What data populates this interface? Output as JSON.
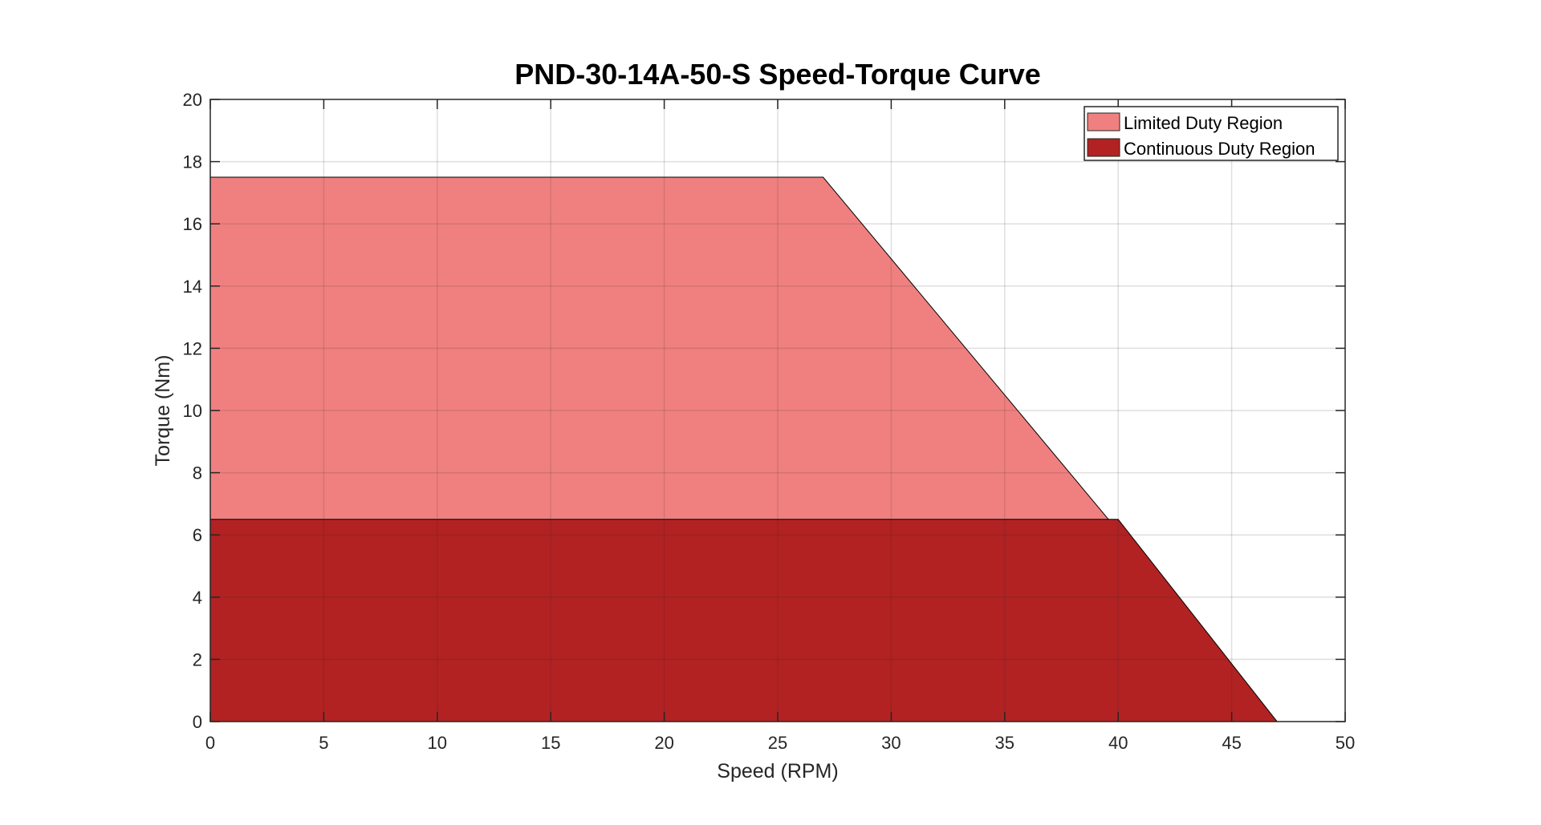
{
  "chart_data": {
    "type": "area",
    "title": "PND-30-14A-50-S Speed-Torque Curve",
    "xlabel": "Speed (RPM)",
    "ylabel": "Torque (Nm)",
    "xlim": [
      0,
      50
    ],
    "ylim": [
      0,
      20
    ],
    "xticks": [
      0,
      5,
      10,
      15,
      20,
      25,
      30,
      35,
      40,
      45,
      50
    ],
    "yticks": [
      0,
      2,
      4,
      6,
      8,
      10,
      12,
      14,
      16,
      18,
      20
    ],
    "grid": true,
    "legend_position": "top-right",
    "series": [
      {
        "name": "Limited Duty Region",
        "color": "#F08080",
        "points": [
          [
            0,
            0
          ],
          [
            0,
            17.5
          ],
          [
            27,
            17.5
          ],
          [
            47,
            0
          ]
        ]
      },
      {
        "name": "Continuous Duty Region",
        "color": "#B22222",
        "points": [
          [
            0,
            0
          ],
          [
            0,
            6.5
          ],
          [
            40,
            6.5
          ],
          [
            47,
            0
          ]
        ]
      }
    ]
  }
}
